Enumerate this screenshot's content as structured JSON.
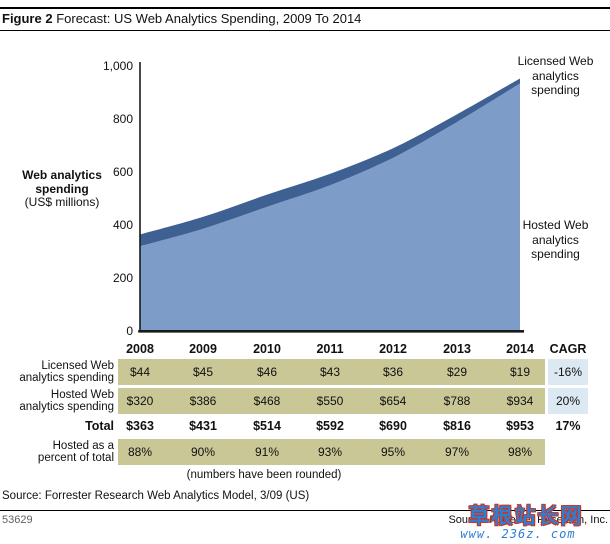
{
  "figure": {
    "label": "Figure 2",
    "title": "Forecast: US Web Analytics Spending, 2009 To 2014"
  },
  "chart_data": {
    "type": "area",
    "stacked": true,
    "title": "Forecast: US Web Analytics Spending, 2009 To 2014",
    "x": [
      2008,
      2009,
      2010,
      2011,
      2012,
      2013,
      2014
    ],
    "series": [
      {
        "name": "Hosted Web analytics spending",
        "values": [
          320,
          386,
          468,
          550,
          654,
          788,
          934
        ],
        "color": "#7e9cc8"
      },
      {
        "name": "Licensed Web analytics spending",
        "values": [
          44,
          45,
          46,
          43,
          36,
          29,
          19
        ],
        "color": "#3e6093"
      }
    ],
    "ylabel": "Web analytics spending",
    "ylabel_unit": "(US$ millions)",
    "ylim": [
      0,
      1000
    ],
    "grid": false,
    "yticks": [
      {
        "label": "1,000",
        "value": 1000
      },
      {
        "label": "800",
        "value": 800
      },
      {
        "label": "600",
        "value": 600
      },
      {
        "label": "400",
        "value": 400
      },
      {
        "label": "200",
        "value": 200
      },
      {
        "label": "0",
        "value": 0
      }
    ],
    "annotations": {
      "licensed_lines": [
        "Licensed Web",
        "analytics",
        "spending"
      ],
      "hosted_lines": [
        "Hosted Web",
        "analytics",
        "spending"
      ]
    }
  },
  "axis_label": {
    "line1": "Web analytics",
    "line2": "spending",
    "line3": "(US$ millions)"
  },
  "table": {
    "years": [
      "2008",
      "2009",
      "2010",
      "2011",
      "2012",
      "2013",
      "2014"
    ],
    "cagr_header": "CAGR",
    "rows": [
      {
        "id": "licensed",
        "label_lines": [
          "Licensed Web",
          "analytics spending"
        ],
        "values": [
          "$44",
          "$45",
          "$46",
          "$43",
          "$36",
          "$29",
          "$19"
        ],
        "cagr": "-16%",
        "bold": false,
        "band": true
      },
      {
        "id": "hosted",
        "label_lines": [
          "Hosted Web",
          "analytics spending"
        ],
        "values": [
          "$320",
          "$386",
          "$468",
          "$550",
          "$654",
          "$788",
          "$934"
        ],
        "cagr": "20%",
        "bold": false,
        "band": true
      },
      {
        "id": "total",
        "label_lines": [
          "Total"
        ],
        "values": [
          "$363",
          "$431",
          "$514",
          "$592",
          "$690",
          "$816",
          "$953"
        ],
        "cagr": "17%",
        "bold": true,
        "band": false
      },
      {
        "id": "hosted-percent",
        "label_lines": [
          "Hosted as a",
          "percent of total"
        ],
        "values": [
          "88%",
          "90%",
          "91%",
          "93%",
          "95%",
          "97%",
          "98%"
        ],
        "cagr": "",
        "bold": false,
        "band": true
      }
    ],
    "note": "(numbers have been rounded)"
  },
  "source_note": "Source: Forrester Research Web Analytics Model, 3/09 (US)",
  "footer": {
    "doc_number": "53629",
    "source": "Source: Forrester Research, Inc.",
    "watermark_text": "草根站长网",
    "watermark_url": "www. 236z. com"
  },
  "colors": {
    "hosted_fill": "#7e9cc8",
    "licensed_fill": "#3e6093",
    "table_cell_bg": "#c8c795",
    "cagr_cell_bg": "#dce9f2",
    "axis": "#1a1a1a",
    "watermark_blue": "#2e7fd2",
    "footer_gray": "#5f5f5f"
  }
}
